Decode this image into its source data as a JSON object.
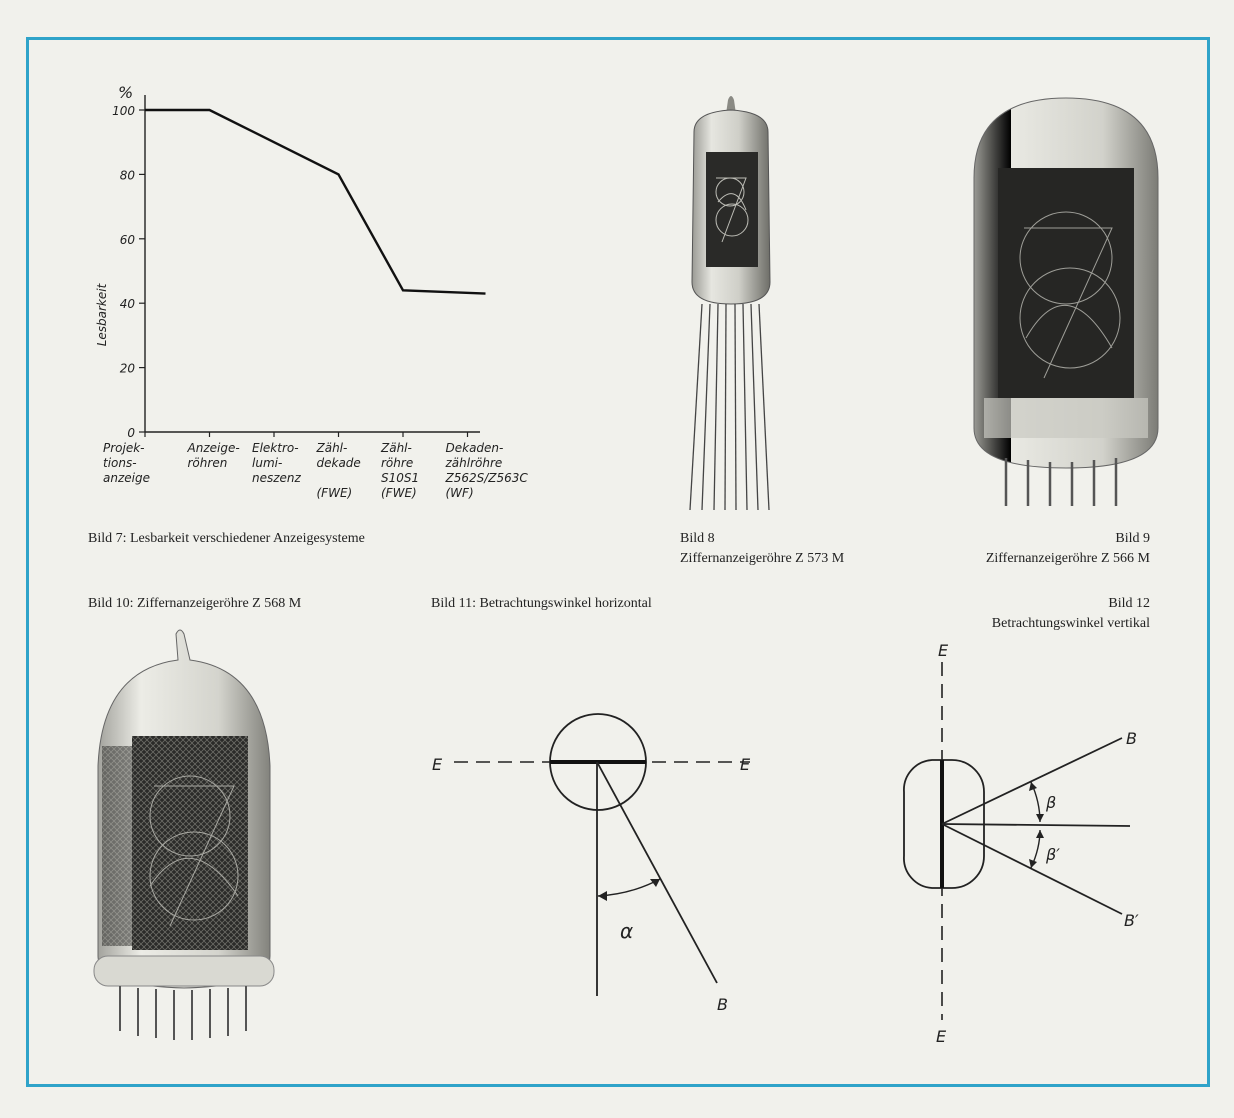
{
  "colors": {
    "frame": "#2fa3c9",
    "page": "#f1f1ec",
    "ink": "#1d1d1d"
  },
  "captions": {
    "bild7": "Bild 7: Lesbarkeit verschiedener Anzeigesysteme",
    "bild8_num": "Bild 8",
    "bild8_title": "Ziffernanzeigeröhre Z 573 M",
    "bild9_num": "Bild 9",
    "bild9_title": "Ziffernanzeigeröhre Z 566 M",
    "bild10": "Bild 10: Ziffernanzeigeröhre Z 568 M",
    "bild11": "Bild 11: Betrachtungswinkel horizontal",
    "bild12_num": "Bild 12",
    "bild12_title": "Betrachtungswinkel vertikal"
  },
  "chart_data": {
    "type": "line",
    "ylabel": "Lesbarkeit",
    "yunit": "%",
    "ylim": [
      0,
      100
    ],
    "yticks": [
      "0",
      "20",
      "40",
      "60",
      "80",
      "100"
    ],
    "categories": [
      [
        "Projek-",
        "tions-",
        "anzeige"
      ],
      [
        "Anzeige-",
        "röhren"
      ],
      [
        "Elektro-",
        "lumi-",
        "neszenz"
      ],
      [
        "Zähl-",
        "dekade",
        "",
        "(FWE)"
      ],
      [
        "Zähl-",
        "röhre",
        "S10S1",
        "(FWE)"
      ],
      [
        "Dekaden-",
        "zählröhre",
        "Z562S/Z563C",
        "(WF)"
      ]
    ],
    "series": [
      {
        "x": [
          0,
          1,
          2,
          3,
          4,
          5
        ],
        "values": [
          100,
          100,
          90,
          80,
          44,
          43
        ]
      }
    ]
  },
  "diagram11": {
    "label_e_left": "E",
    "label_e_right": "E",
    "label_b": "B",
    "angle": "α"
  },
  "diagram12": {
    "label_e_top": "E",
    "label_e_bottom": "E",
    "label_b": "B",
    "label_b_prime": "B′",
    "angle_beta": "β",
    "angle_beta_prime": "β′"
  }
}
